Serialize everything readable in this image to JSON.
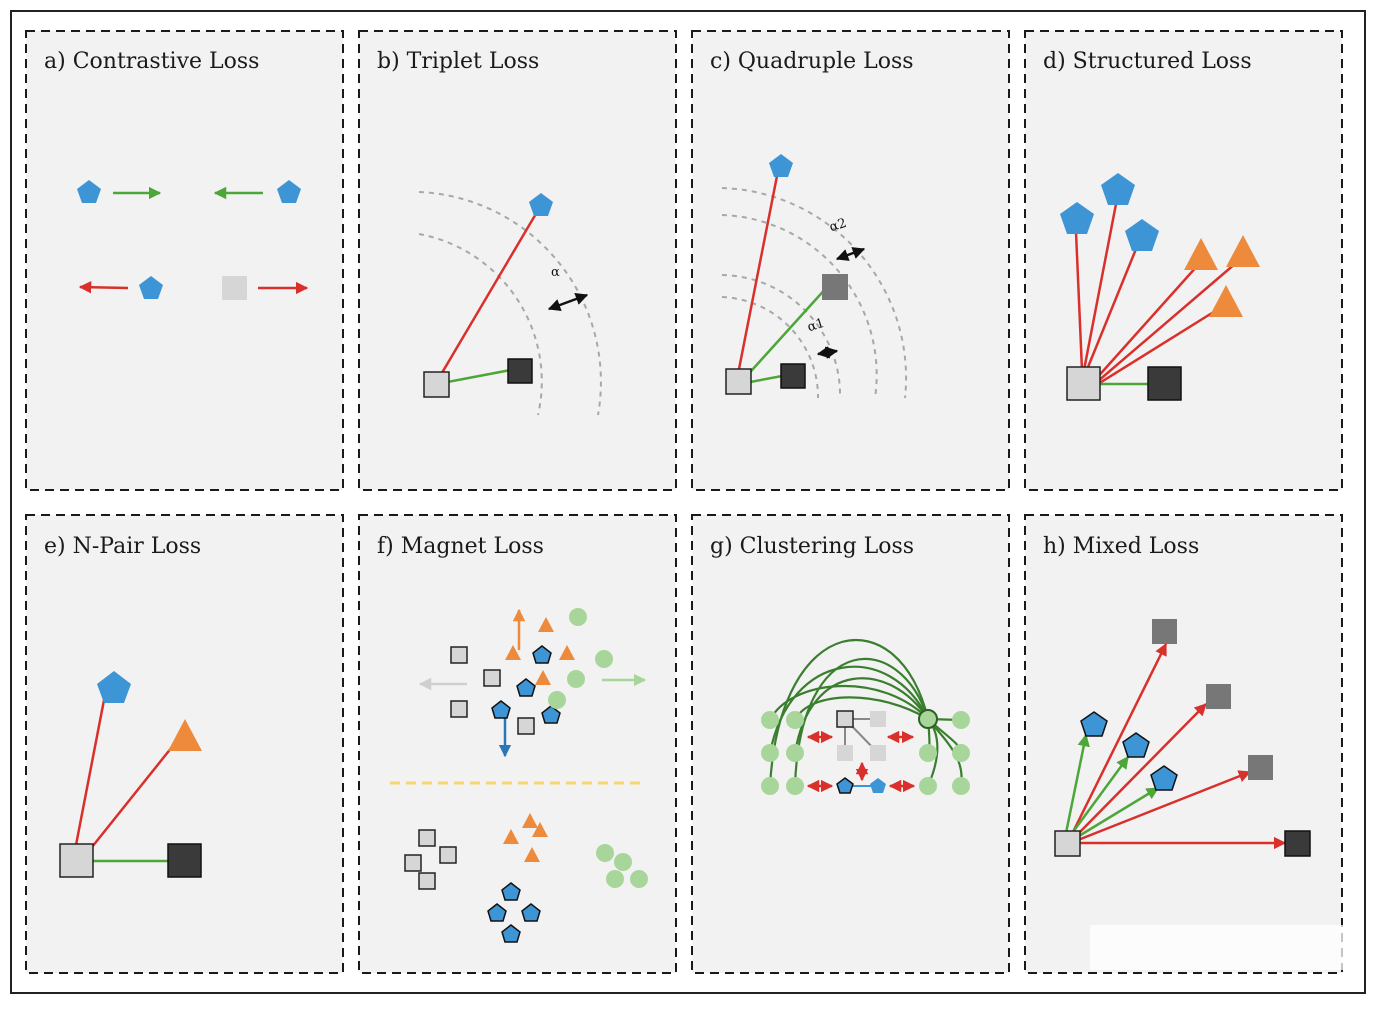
{
  "panels": [
    {
      "id": "a",
      "title": "a) Contrastive Loss"
    },
    {
      "id": "b",
      "title": "b) Triplet Loss",
      "margin_label": "α"
    },
    {
      "id": "c",
      "title": "c) Quadruple Loss",
      "margin_label_1": "α1",
      "margin_label_2": "α2"
    },
    {
      "id": "d",
      "title": "d) Structured Loss"
    },
    {
      "id": "e",
      "title": "e) N-Pair Loss"
    },
    {
      "id": "f",
      "title": "f) Magnet Loss"
    },
    {
      "id": "g",
      "title": "g) Clustering Loss"
    },
    {
      "id": "h",
      "title": "h) Mixed Loss"
    }
  ],
  "colors": {
    "blue": "#3d95d6",
    "orange": "#ee8a3c",
    "green_line": "#4da638",
    "red_line": "#d9302b",
    "dark_green_arc": "#3a7f2e",
    "light_green_dot": "#a8d69a",
    "light_square": "#d6d6d6",
    "mid_square": "#777777",
    "dark_square": "#3a3a3a",
    "yellow_dash": "#f5d76e"
  }
}
